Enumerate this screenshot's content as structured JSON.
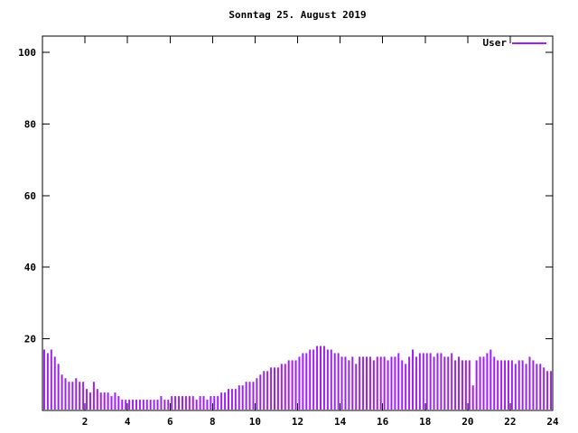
{
  "chart_data": {
    "type": "bar",
    "style": "impulses",
    "title": "Sonntag 25. August 2019",
    "xlabel": "",
    "ylabel": "",
    "xlim": [
      0,
      24
    ],
    "ylim": [
      0,
      105
    ],
    "xticks": [
      2,
      4,
      6,
      8,
      10,
      12,
      14,
      16,
      18,
      20,
      22,
      24
    ],
    "yticks": [
      20,
      40,
      60,
      80,
      100
    ],
    "grid": false,
    "legend_position": "top-right",
    "x_start": 0,
    "x_step_hours": 0.1666667,
    "colors": {
      "bar": "#a020f0",
      "axis": "#000000",
      "background": "#ffffff"
    },
    "series": [
      {
        "name": "User",
        "values": [
          17,
          16,
          17,
          15,
          13,
          10,
          9,
          8,
          8,
          9,
          8,
          8,
          6,
          5,
          8,
          6,
          5,
          5,
          5,
          4,
          5,
          4,
          3,
          3,
          3,
          3,
          3,
          3,
          3,
          3,
          3,
          3,
          3,
          4,
          3,
          3,
          4,
          4,
          4,
          4,
          4,
          4,
          4,
          3,
          4,
          4,
          3,
          4,
          4,
          4,
          5,
          5,
          6,
          6,
          6,
          7,
          7,
          8,
          8,
          8,
          9,
          10,
          11,
          11,
          12,
          12,
          12,
          13,
          13,
          14,
          14,
          14,
          15,
          16,
          16,
          17,
          17,
          18,
          18,
          18,
          17,
          17,
          16,
          16,
          15,
          15,
          14,
          15,
          13,
          15,
          15,
          15,
          15,
          14,
          15,
          15,
          15,
          14,
          15,
          15,
          16,
          14,
          13,
          15,
          17,
          15,
          16,
          16,
          16,
          16,
          15,
          16,
          16,
          15,
          15,
          16,
          14,
          15,
          14,
          14,
          14,
          7,
          14,
          15,
          15,
          16,
          17,
          15,
          14,
          14,
          14,
          14,
          14,
          13,
          14,
          14,
          13,
          15,
          14,
          13,
          13,
          12,
          11,
          11
        ]
      }
    ]
  }
}
